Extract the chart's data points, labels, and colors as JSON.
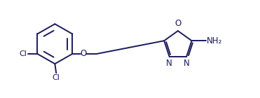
{
  "bg_color": "#ffffff",
  "line_color": "#1a1a5e",
  "fig_width": 3.71,
  "fig_height": 1.4,
  "dpi": 100,
  "xlim": [
    0,
    10
  ],
  "ylim": [
    0,
    3.8
  ]
}
